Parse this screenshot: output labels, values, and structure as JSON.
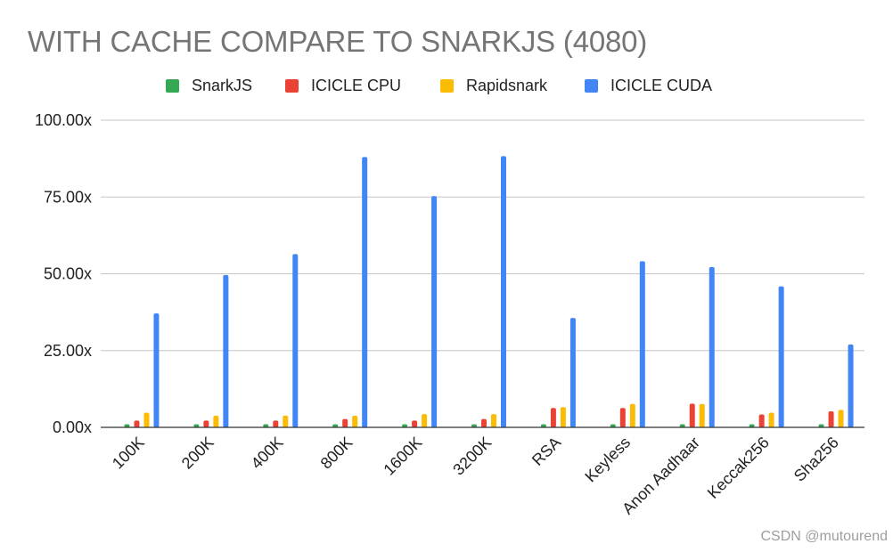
{
  "chart_data": {
    "type": "bar",
    "title": "WITH CACHE COMPARE TO SNARKJS (4080)",
    "xlabel": "",
    "ylabel": "",
    "ylim": [
      0,
      100
    ],
    "yticks": [
      "0.00x",
      "25.00x",
      "50.00x",
      "75.00x",
      "100.00x"
    ],
    "grid": true,
    "legend_position": "top",
    "categories": [
      "100K",
      "200K",
      "400K",
      "800K",
      "1600K",
      "3200K",
      "RSA",
      "Keyless",
      "Anon Aadhaar",
      "Keccak256",
      "Sha256"
    ],
    "series": [
      {
        "name": "SnarkJS",
        "color": "#34a853",
        "values": [
          1,
          1,
          1,
          1,
          1,
          1,
          1,
          1,
          1,
          1,
          1
        ]
      },
      {
        "name": "ICICLE CPU",
        "color": "#ea4335",
        "values": [
          2.2,
          2.2,
          2.2,
          2.7,
          2.2,
          2.7,
          6.3,
          6.3,
          7.7,
          4.2,
          5.2
        ]
      },
      {
        "name": "Rapidsnark",
        "color": "#fbbc04",
        "values": [
          4.8,
          3.8,
          3.8,
          3.8,
          4.3,
          4.3,
          6.6,
          7.6,
          7.6,
          4.8,
          5.7
        ]
      },
      {
        "name": "ICICLE CUDA",
        "color": "#4285f4",
        "values": [
          37.1,
          49.6,
          56.4,
          88,
          75.3,
          88.3,
          35.6,
          54.1,
          52.2,
          45.9,
          27
        ]
      }
    ]
  },
  "watermark": "CSDN @mutourend"
}
